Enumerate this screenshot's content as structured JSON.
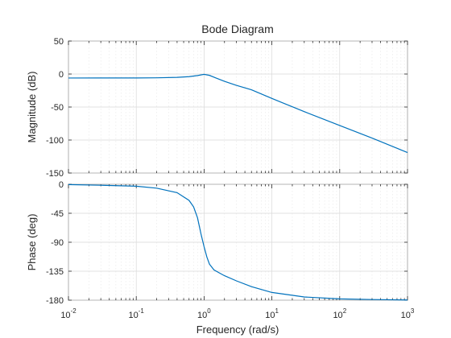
{
  "chart_data": {
    "type": "line",
    "title": "Bode Diagram",
    "xlabel": "Frequency  (rad/s)",
    "x_scale": "log",
    "xlim": [
      0.01,
      1000
    ],
    "x_ticks": [
      0.01,
      0.1,
      1,
      10,
      100,
      1000
    ],
    "x_tick_labels": [
      {
        "base": "10",
        "exp": "-2"
      },
      {
        "base": "10",
        "exp": "-1"
      },
      {
        "base": "10",
        "exp": "0"
      },
      {
        "base": "10",
        "exp": "1"
      },
      {
        "base": "10",
        "exp": "2"
      },
      {
        "base": "10",
        "exp": "3"
      }
    ],
    "grid": true,
    "line_color": "#0072bd",
    "panels": [
      {
        "name": "magnitude",
        "ylabel": "Magnitude (dB)",
        "ylim": [
          -150,
          50
        ],
        "y_ticks": [
          50,
          0,
          -50,
          -100,
          -150
        ],
        "y_tick_labels": [
          "50",
          "0",
          "-50",
          "-100",
          "-150"
        ],
        "x": [
          0.01,
          0.03,
          0.1,
          0.2,
          0.4,
          0.6,
          0.8,
          1,
          1.2,
          1.5,
          2,
          3,
          5,
          10,
          30,
          100,
          300,
          1000
        ],
        "y": [
          -6,
          -5.99,
          -5.9,
          -5.7,
          -5,
          -4,
          -2.3,
          -0.5,
          -2,
          -6,
          -11,
          -17.2,
          -23.9,
          -37,
          -57,
          -78,
          -97,
          -119
        ]
      },
      {
        "name": "phase",
        "ylabel": "Phase (deg)",
        "ylim": [
          -180,
          0
        ],
        "y_ticks": [
          0,
          -45,
          -90,
          -135,
          -180
        ],
        "y_tick_labels": [
          "0",
          "-45",
          "-90",
          "-135",
          "-180"
        ],
        "x": [
          0.01,
          0.03,
          0.1,
          0.2,
          0.4,
          0.6,
          0.7,
          0.8,
          0.9,
          1,
          1.1,
          1.2,
          1.4,
          1.7,
          2,
          3,
          5,
          10,
          30,
          100,
          300,
          1000
        ],
        "y": [
          -0.5,
          -1.5,
          -3,
          -6,
          -13,
          -25,
          -35,
          -52,
          -77,
          -97,
          -113,
          -124,
          -133,
          -138,
          -142,
          -150,
          -159,
          -168,
          -175,
          -178,
          -179,
          -179.7
        ]
      }
    ]
  }
}
